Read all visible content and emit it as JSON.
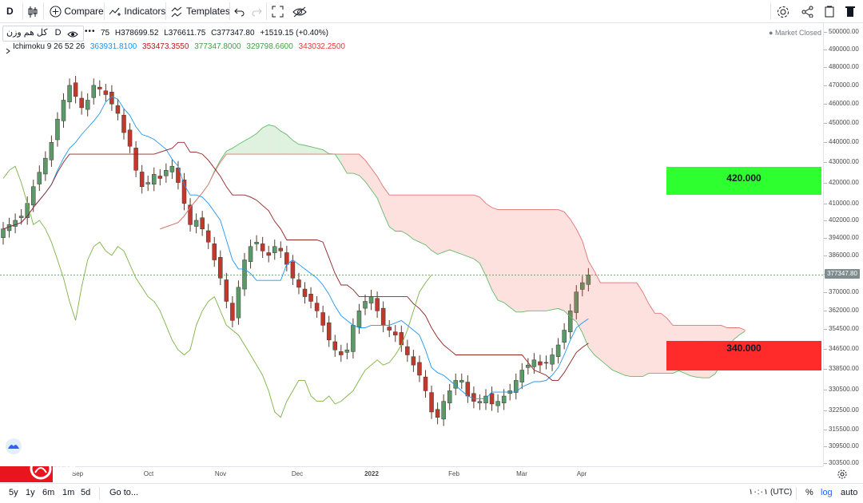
{
  "toolbar": {
    "interval": "D",
    "compare_label": "Compare",
    "indicators_label": "Indicators",
    "templates_label": "Templates"
  },
  "legend": {
    "symbol": "کل هم وزن",
    "symbol_interval": "D",
    "ohlc_partial": "75",
    "high": "H378699.52",
    "low": "L376611.75",
    "close": "C377347.80",
    "change": "+1519.15 (+0.40%)",
    "ichimoku_label": "Ichimoku 9 26 52 26",
    "ichimoku_values": [
      "363931.8100",
      "353473.3550",
      "377347.8000",
      "329798.6600",
      "343032.2500"
    ],
    "ichimoku_colors": [
      "#2196f3",
      "#b71c1c",
      "#43a047",
      "#43a047",
      "#e53935"
    ],
    "market_status": "Market Closed"
  },
  "annotations": {
    "target_high": "420.000",
    "target_low": "340.000",
    "last_price_label": "377347.80",
    "watermark": "YJC"
  },
  "bottombar": {
    "ranges": [
      "5y",
      "1y",
      "6m",
      "1m",
      "5d"
    ],
    "goto_label": "Go to...",
    "time_label": "۱۰:۰۱ (UTC)",
    "percent_label": "%",
    "log_label": "log",
    "auto_label": "auto"
  },
  "chart_data": {
    "type": "candlestick",
    "y_scale": "log",
    "ylim": [
      300000,
      505000
    ],
    "y_ticks": [
      "500000.00",
      "490000.00",
      "480000.00",
      "470000.00",
      "460000.00",
      "450000.00",
      "440000.00",
      "430000.00",
      "420000.00",
      "410000.00",
      "402000.00",
      "394000.00",
      "386000.00",
      "378000.00",
      "370000.00",
      "362000.00",
      "354500.00",
      "346500.00",
      "338500.00",
      "330500.00",
      "322500.00",
      "315500.00",
      "309500.00",
      "303500.00"
    ],
    "x_ticks": [
      "Sep",
      "Oct",
      "Nov",
      "Dec",
      "2022",
      "Feb",
      "Mar",
      "Apr"
    ],
    "closes": [
      398000,
      400000,
      402000,
      404000,
      410000,
      418000,
      425000,
      432000,
      440000,
      452000,
      462000,
      470000,
      464000,
      458000,
      462000,
      470000,
      468000,
      465000,
      460000,
      455000,
      445000,
      438000,
      426000,
      418000,
      420000,
      424000,
      422000,
      426000,
      428000,
      420000,
      410000,
      400000,
      402000,
      398000,
      392000,
      384000,
      376000,
      366000,
      358000,
      372000,
      384000,
      390000,
      392000,
      388000,
      386000,
      390000,
      388000,
      382000,
      376000,
      372000,
      368000,
      366000,
      362000,
      356000,
      350000,
      346000,
      344000,
      346000,
      356000,
      362000,
      366000,
      368000,
      362000,
      356000,
      354000,
      352000,
      348000,
      344000,
      340000,
      336000,
      330000,
      322000,
      320000,
      326000,
      330000,
      334000,
      334000,
      328000,
      326000,
      326000,
      328000,
      325000,
      326000,
      328000,
      330000,
      334000,
      338000,
      340000,
      342000,
      340000,
      341000,
      344000,
      348000,
      354000,
      362000,
      370000,
      374000,
      377347.8
    ],
    "ichimoku": {
      "tenkan_last": 363931.81,
      "kijun_last": 353473.355,
      "chikou_last": 377347.8,
      "senkou_a_last": 329798.66,
      "senkou_b_last": 343032.25
    }
  }
}
